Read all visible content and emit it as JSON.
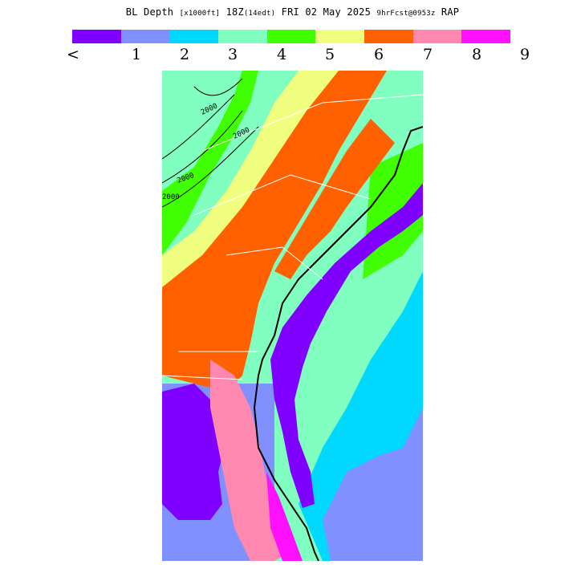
{
  "title": {
    "prefix": "BL Depth ",
    "units": "[x1000ft]",
    "time": " 18Z",
    "local": "(14edt)",
    "date": " FRI 02 May 2025 ",
    "fcst": "9hrFcst@0953z",
    "model": " RAP"
  },
  "legend": {
    "colors": [
      "#8000ff",
      "#8090ff",
      "#00d8ff",
      "#80ffc0",
      "#40ff00",
      "#f0ff80",
      "#ff6000",
      "#ff88b0",
      "#ff10ff"
    ],
    "labels": [
      "<",
      "1",
      "2",
      "3",
      "4",
      "5",
      "6",
      "7",
      "8",
      "9"
    ]
  },
  "contour_labels": [
    "2000",
    "2000",
    "2000",
    "2000"
  ],
  "map_colors": {
    "outline": "#000000",
    "state_lines": "#ffffff"
  }
}
